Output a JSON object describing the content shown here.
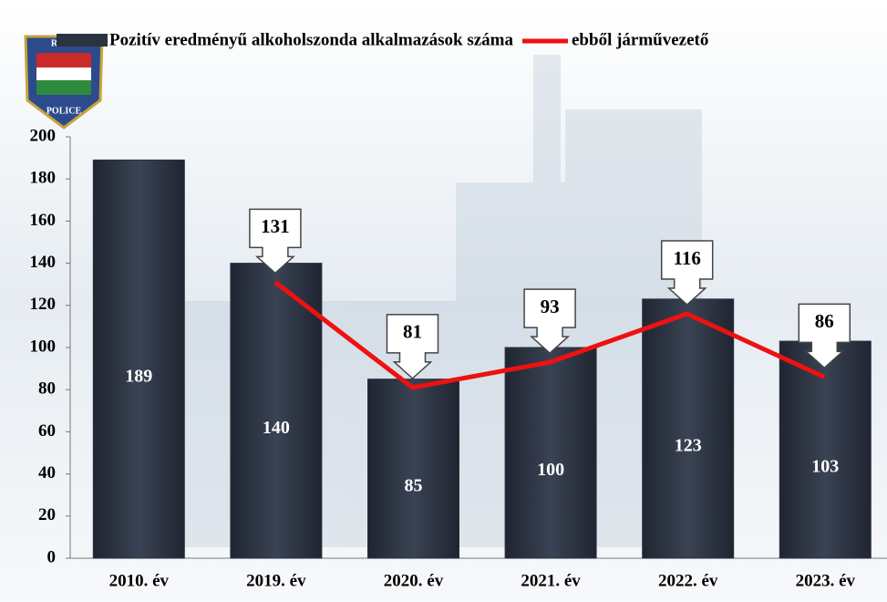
{
  "logo": [
    "REND",
    "POLICE"
  ],
  "chart_data": {
    "type": "bar-line",
    "categories": [
      "2010. év",
      "2019. év",
      "2020. év",
      "2021. év",
      "2022. év",
      "2023. év"
    ],
    "series": [
      {
        "name": "Pozitív eredményű alkoholszonda alkalmazások száma",
        "color": "#2b3240",
        "type": "bar",
        "values": [
          189,
          140,
          85,
          100,
          123,
          103
        ]
      },
      {
        "name": "ebből járművezető",
        "color": "#ee1111",
        "type": "line",
        "values": [
          null,
          131,
          81,
          93,
          116,
          86
        ]
      }
    ],
    "ylim": [
      0,
      200
    ],
    "yticks": [
      0,
      20,
      40,
      60,
      80,
      100,
      120,
      140,
      160,
      180,
      200
    ],
    "legend": "top"
  }
}
